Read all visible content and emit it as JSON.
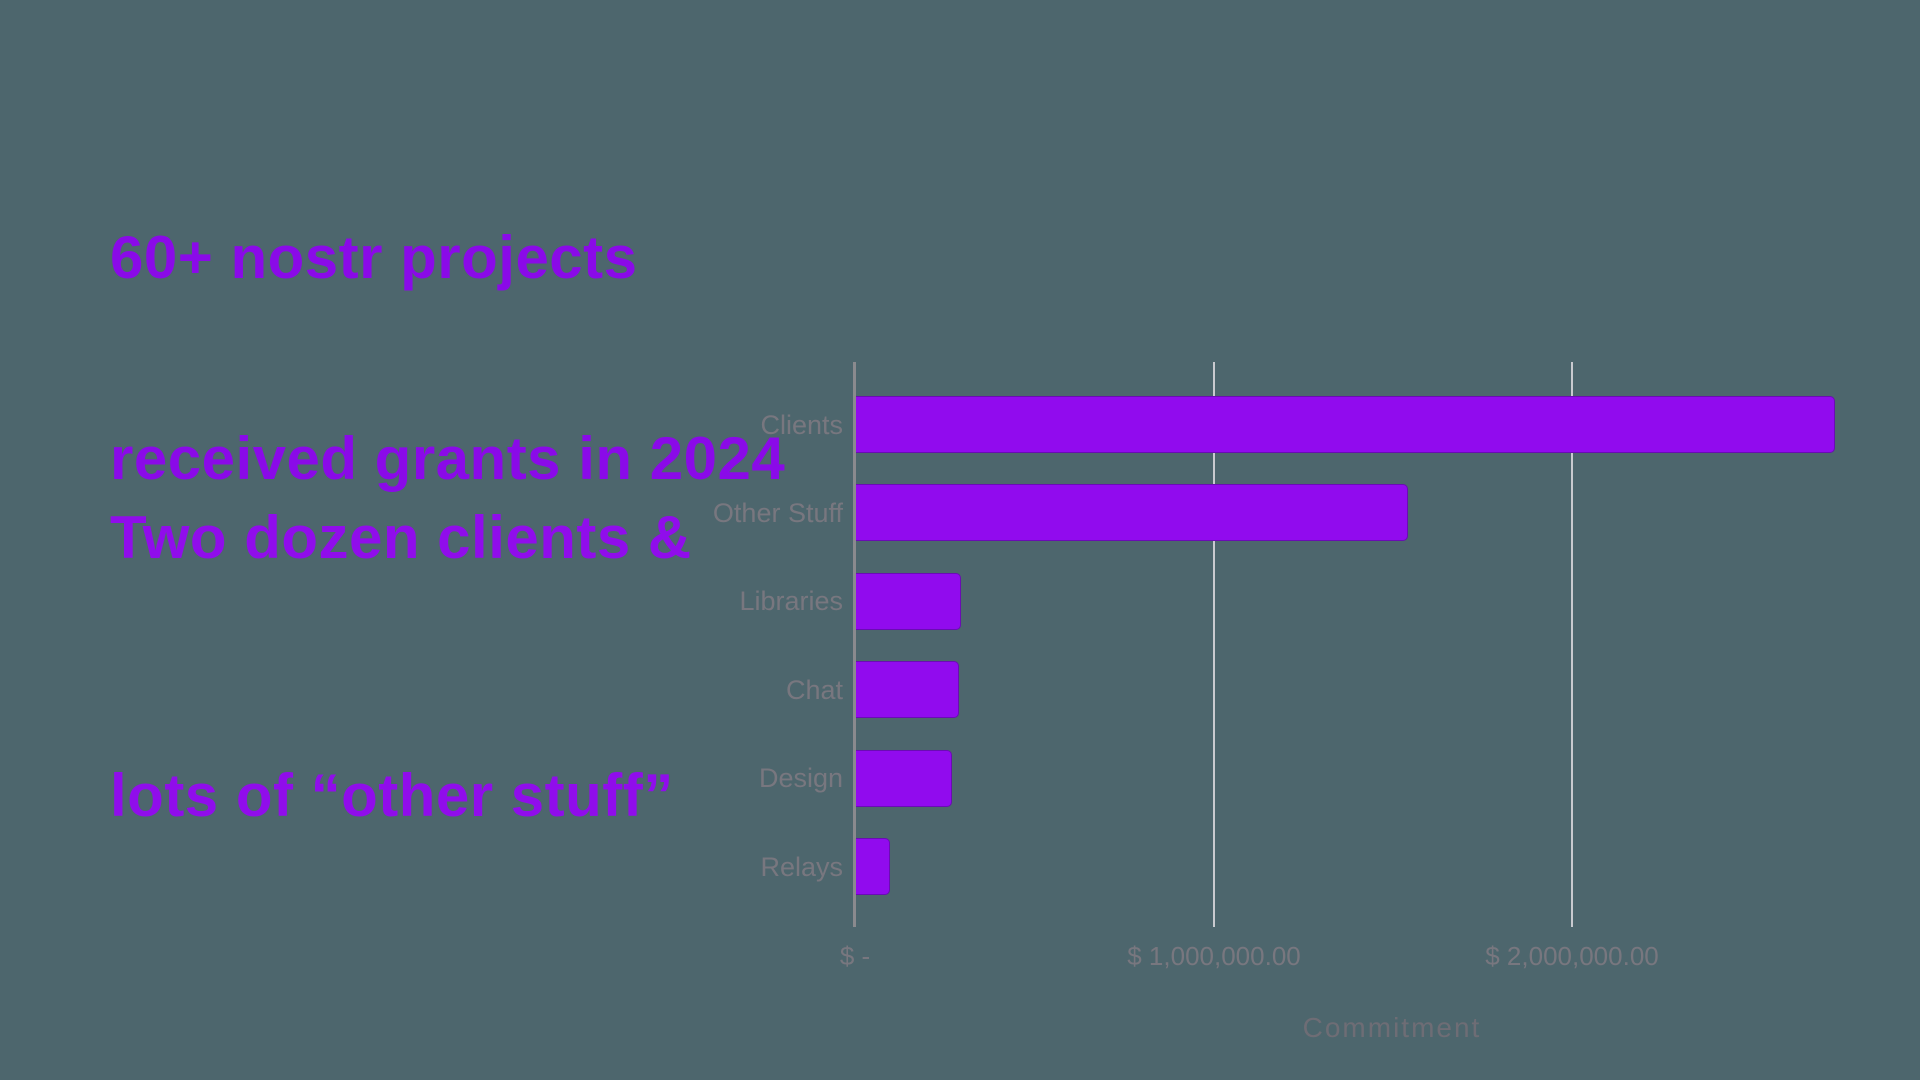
{
  "background_color": "#4D666D",
  "title": {
    "lines": [
      "60+ nostr projects",
      "received grants in 2024"
    ],
    "color": "#8A0AE8"
  },
  "subtitle": {
    "lines": [
      "Two dozen clients &",
      "lots of “other stuff”"
    ],
    "color": "#900DEB"
  },
  "chart_data": {
    "type": "bar",
    "orientation": "horizontal",
    "title": "",
    "xlabel": "Commitment",
    "ylabel": "",
    "categories": [
      "Clients",
      "Other Stuff",
      "Libraries",
      "Chat",
      "Design",
      "Relays"
    ],
    "values": [
      2730000,
      1540000,
      293000,
      287000,
      268000,
      95000
    ],
    "x_ticks": [
      {
        "value": 0,
        "label": "$ -"
      },
      {
        "value": 1000000,
        "label": "$ 1,000,000.00"
      },
      {
        "value": 2000000,
        "label": "$ 2,000,000.00"
      }
    ],
    "xlim": [
      0,
      2970000
    ],
    "grid": true,
    "legend": false,
    "bar_color": "#910BEE",
    "axis_line_color": "#8A8A8E",
    "gridline_color": "#C9CACF",
    "category_label_color": "#78777F",
    "tick_label_color": "#78777F",
    "axis_title_color": "#6E6D75"
  }
}
